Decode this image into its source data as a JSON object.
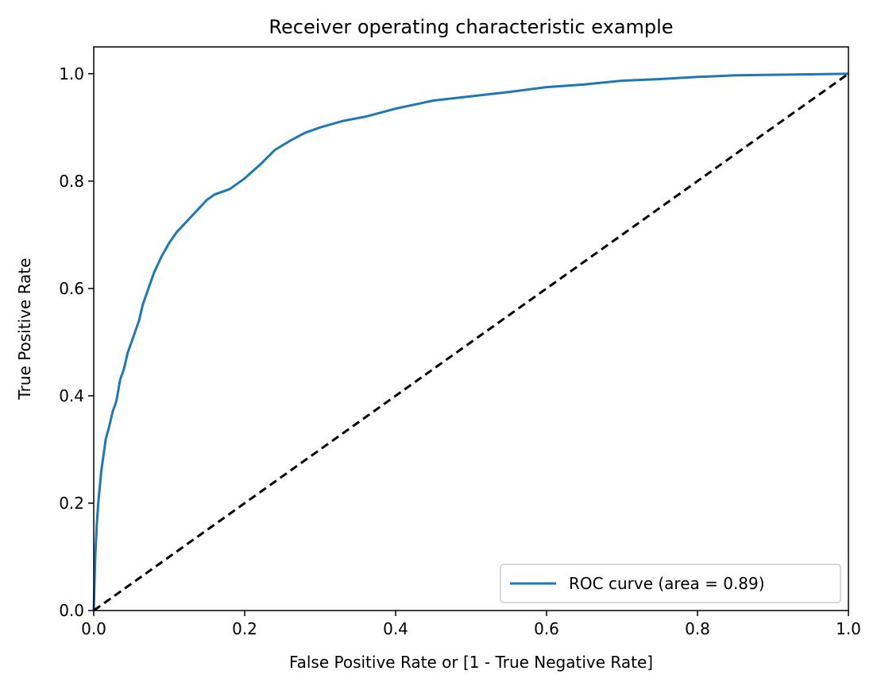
{
  "chart_data": {
    "type": "line",
    "title": "Receiver operating characteristic example",
    "xlabel": "False Positive Rate or [1 - True Negative Rate]",
    "ylabel": "True Positive Rate",
    "xlim": [
      0.0,
      1.0
    ],
    "ylim": [
      0.0,
      1.05
    ],
    "x_ticks": [
      0.0,
      0.2,
      0.4,
      0.6,
      0.8,
      1.0
    ],
    "x_tick_labels": [
      "0.0",
      "0.2",
      "0.4",
      "0.6",
      "0.8",
      "1.0"
    ],
    "y_ticks": [
      0.0,
      0.2,
      0.4,
      0.6,
      0.8,
      1.0
    ],
    "y_tick_labels": [
      "0.0",
      "0.2",
      "0.4",
      "0.6",
      "0.8",
      "1.0"
    ],
    "grid": false,
    "legend_position": "lower-right",
    "series": [
      {
        "name": "ROC curve (area = 0.89)",
        "color": "#1f77b4",
        "style": "solid",
        "x": [
          0.0,
          0.002,
          0.004,
          0.006,
          0.008,
          0.01,
          0.013,
          0.016,
          0.02,
          0.025,
          0.03,
          0.035,
          0.04,
          0.045,
          0.05,
          0.055,
          0.06,
          0.065,
          0.07,
          0.075,
          0.08,
          0.09,
          0.1,
          0.11,
          0.12,
          0.13,
          0.14,
          0.15,
          0.16,
          0.17,
          0.18,
          0.2,
          0.22,
          0.24,
          0.26,
          0.28,
          0.3,
          0.33,
          0.36,
          0.4,
          0.45,
          0.5,
          0.55,
          0.6,
          0.65,
          0.7,
          0.75,
          0.8,
          0.85,
          0.9,
          0.95,
          1.0
        ],
        "y": [
          0.0,
          0.1,
          0.16,
          0.2,
          0.23,
          0.26,
          0.29,
          0.32,
          0.34,
          0.37,
          0.39,
          0.43,
          0.45,
          0.48,
          0.5,
          0.52,
          0.54,
          0.57,
          0.59,
          0.61,
          0.63,
          0.66,
          0.685,
          0.705,
          0.72,
          0.735,
          0.75,
          0.765,
          0.775,
          0.78,
          0.785,
          0.805,
          0.83,
          0.858,
          0.875,
          0.89,
          0.9,
          0.912,
          0.92,
          0.935,
          0.95,
          0.958,
          0.966,
          0.975,
          0.98,
          0.987,
          0.99,
          0.994,
          0.997,
          0.998,
          0.999,
          1.0
        ]
      },
      {
        "name": "",
        "color": "#000000",
        "style": "dashed",
        "x": [
          0.0,
          1.0
        ],
        "y": [
          0.0,
          1.0
        ]
      }
    ]
  }
}
